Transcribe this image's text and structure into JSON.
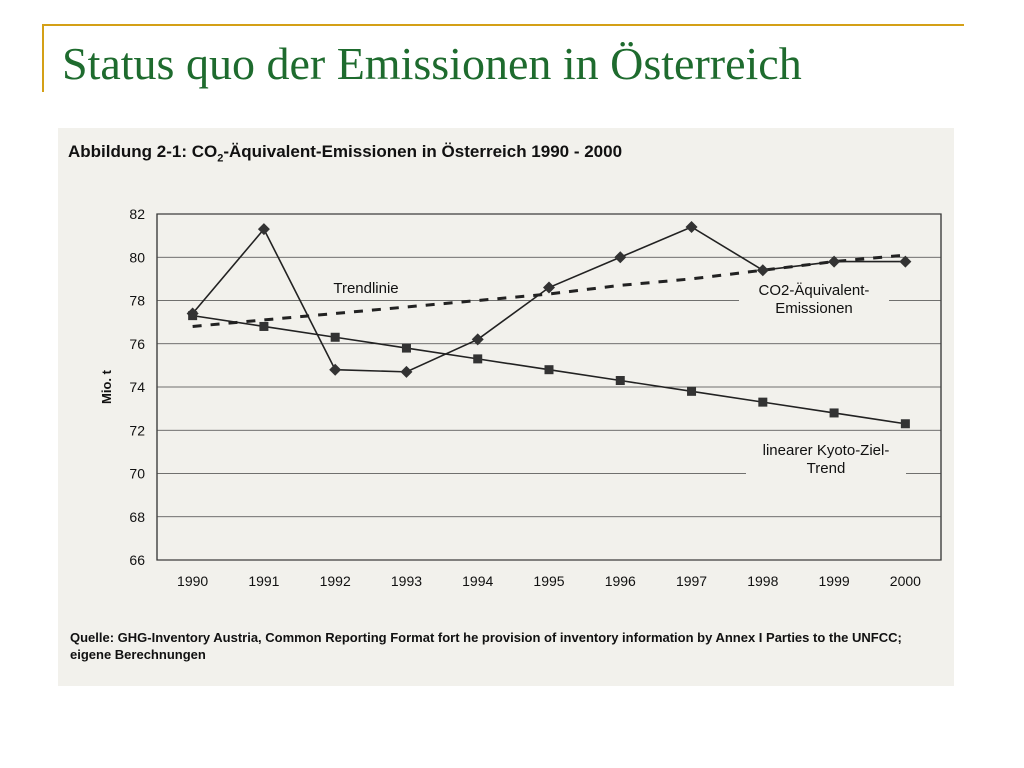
{
  "slide": {
    "title": "Status quo der Emissionen in Österreich",
    "accent_color": "#d4a017",
    "title_color": "#1e6b2e"
  },
  "figure": {
    "title_prefix": "Abbildung 2-1: CO",
    "title_sub": "2",
    "title_suffix": "-Äquivalent-Emissionen in Österreich 1990 - 2000",
    "source": "Quelle: GHG-Inventory Austria, Common Reporting Format fort he provision of inventory information by Annex I Parties to the UNFCC; eigene Berechnungen"
  },
  "chart_data": {
    "type": "line",
    "categories": [
      "1990",
      "1991",
      "1992",
      "1993",
      "1994",
      "1995",
      "1996",
      "1997",
      "1998",
      "1999",
      "2000"
    ],
    "ylabel": "Mio. t",
    "ylim": [
      66,
      82
    ],
    "yticks": [
      66,
      68,
      70,
      72,
      74,
      76,
      78,
      80,
      82
    ],
    "grid": true,
    "series": [
      {
        "name": "CO2-Äquivalent-Emissionen",
        "label_lines": [
          "CO2-Äquivalent-",
          "Emissionen"
        ],
        "marker": "diamond",
        "style": "solid",
        "values": [
          77.4,
          81.3,
          74.8,
          74.7,
          76.2,
          78.6,
          80.0,
          81.4,
          79.4,
          79.8,
          79.8
        ]
      },
      {
        "name": "Trendlinie",
        "label_lines": [
          "Trendlinie"
        ],
        "marker": "none",
        "style": "dashed",
        "values": [
          76.8,
          77.1,
          77.4,
          77.7,
          78.0,
          78.3,
          78.7,
          79.0,
          79.4,
          79.8,
          80.1
        ]
      },
      {
        "name": "linearer Kyoto-Ziel-Trend",
        "label_lines": [
          "linearer Kyoto-Ziel-",
          "Trend"
        ],
        "marker": "square",
        "style": "solid",
        "values": [
          77.3,
          76.8,
          76.3,
          75.8,
          75.3,
          74.8,
          74.3,
          73.8,
          73.3,
          72.8,
          72.3
        ]
      }
    ]
  }
}
